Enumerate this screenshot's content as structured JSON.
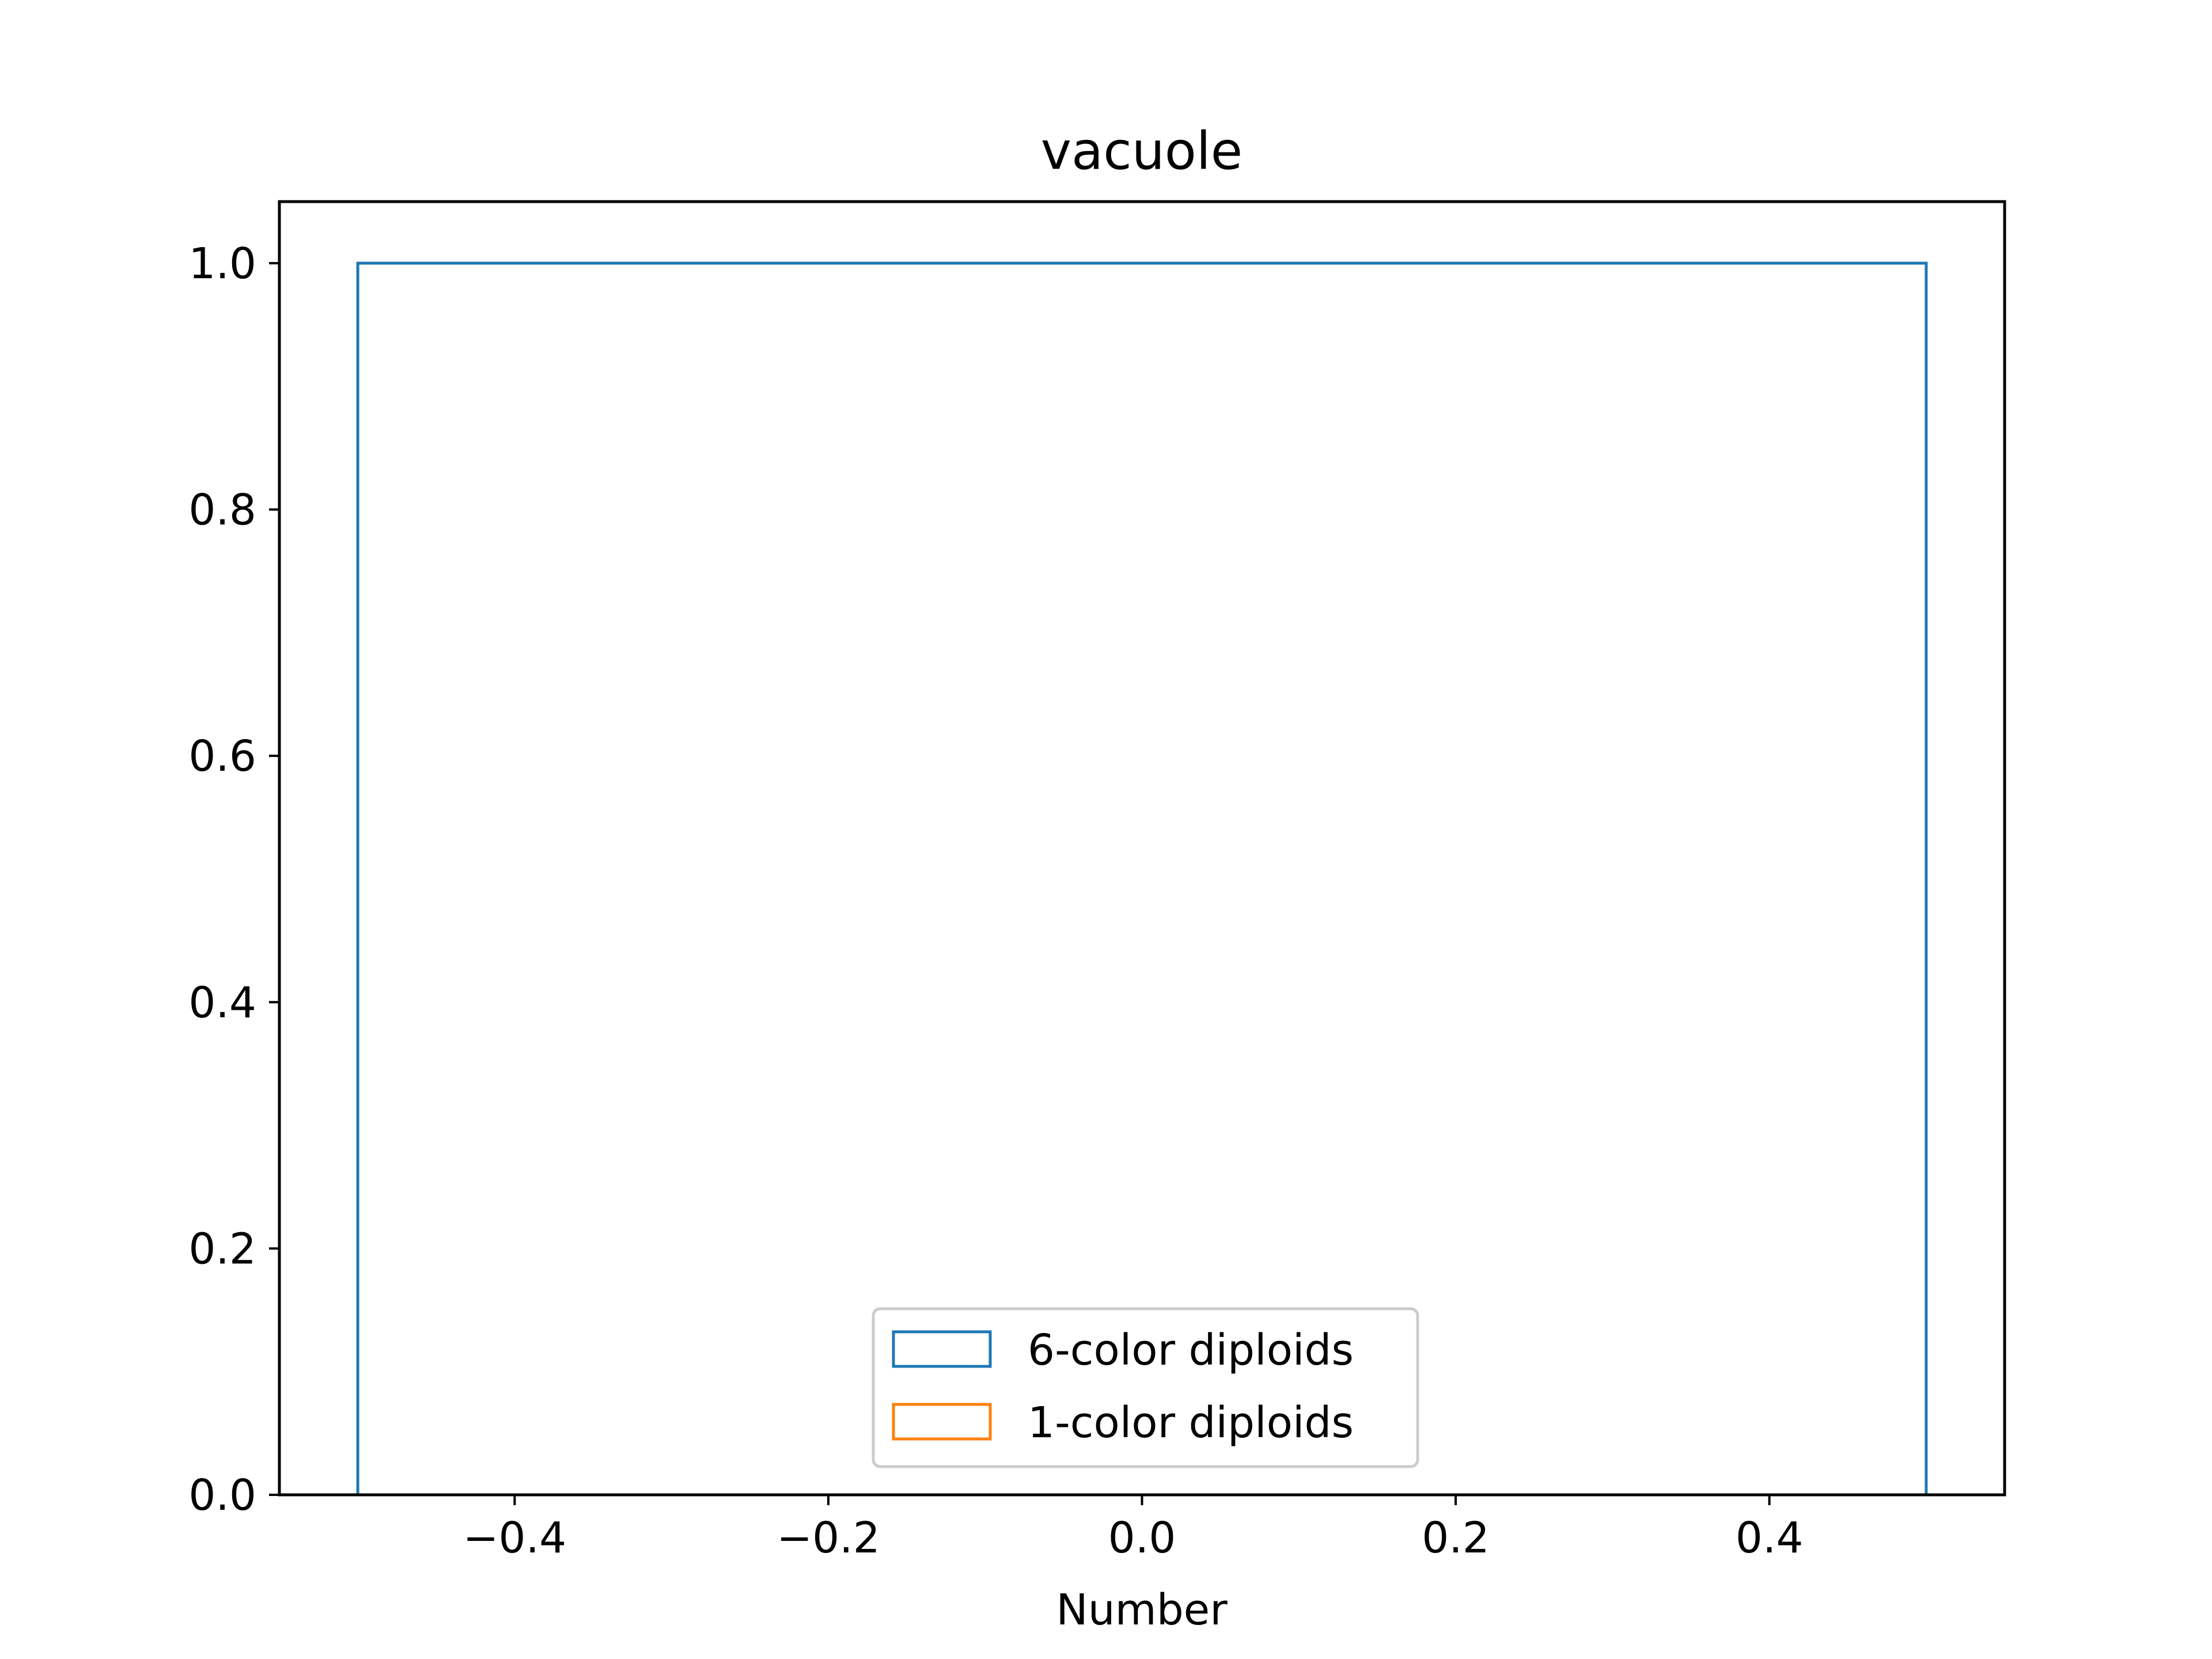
{
  "chart_data": {
    "type": "histogram",
    "title": "vacuole",
    "xlabel": "Number",
    "ylabel": "",
    "xlim": [
      -0.55,
      0.55
    ],
    "ylim": [
      0.0,
      1.05
    ],
    "x_ticks": [
      -0.4,
      -0.2,
      0.0,
      0.2,
      0.4
    ],
    "x_tick_labels": [
      "−0.4",
      "−0.2",
      "0.0",
      "0.2",
      "0.4"
    ],
    "y_ticks": [
      0.0,
      0.2,
      0.4,
      0.6,
      0.8,
      1.0
    ],
    "y_tick_labels": [
      "0.0",
      "0.2",
      "0.4",
      "0.6",
      "0.8",
      "1.0"
    ],
    "grid": false,
    "legend_position": "lower center",
    "histtype": "step",
    "series": [
      {
        "name": "6-color diploids",
        "color": "#1f77b4",
        "bins": [
          [
            -0.5,
            0.5
          ]
        ],
        "values": [
          1.0
        ]
      },
      {
        "name": "1-color diploids",
        "color": "#ff7f0e",
        "bins": [],
        "values": []
      }
    ]
  }
}
